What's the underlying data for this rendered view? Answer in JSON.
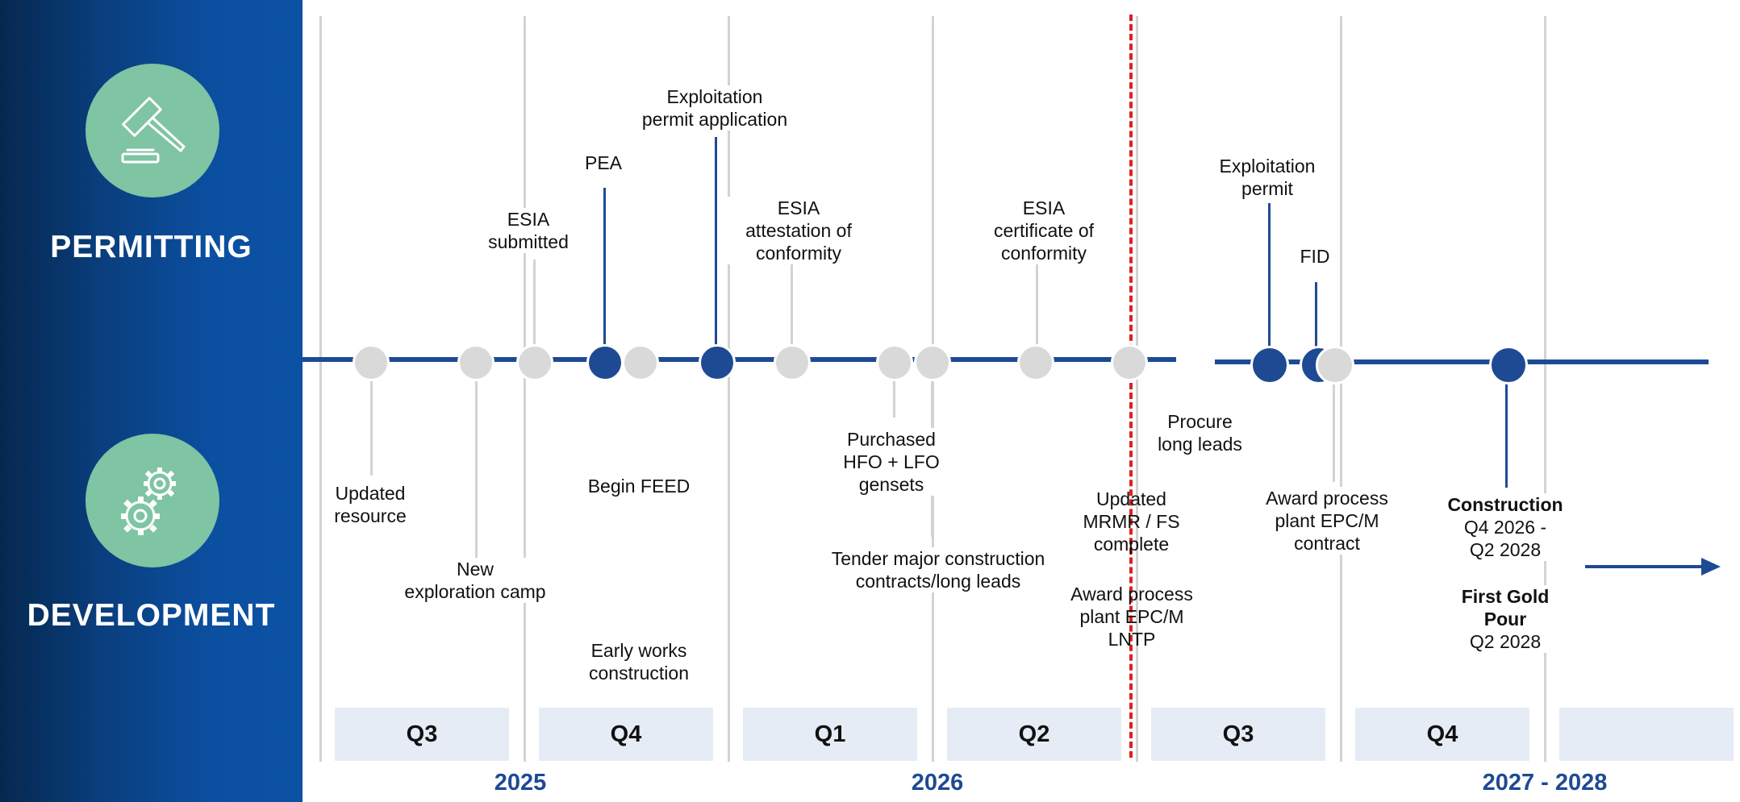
{
  "sidebar": {
    "permitting_label": "PERMITTING",
    "development_label": "DEVELOPMENT"
  },
  "colors": {
    "sidebar_dark": "#05284f",
    "sidebar_blue": "#0c52a4",
    "icon_circle": "#7fc4a3",
    "timeline_blue": "#1e4a94",
    "milestone_grey": "#d9d9d9",
    "today_marker": "#e02020",
    "quarter_box": "#e6ecf5"
  },
  "icons": {
    "permitting": "gavel-icon",
    "development": "gears-icon"
  },
  "permitting_milestones": {
    "esia_submitted": "ESIA\nsubmitted",
    "pea": "PEA",
    "exploitation_permit_application": "Exploitation\npermit application",
    "esia_attestation": "ESIA\nattestation of\nconformity",
    "esia_certificate": "ESIA\ncertificate of\nconformity",
    "exploitation_permit": "Exploitation\npermit",
    "fid": "FID"
  },
  "development_milestones": {
    "updated_resource": "Updated\nresource",
    "new_exploration_camp": "New\nexploration camp",
    "begin_feed": "Begin FEED",
    "early_works": "Early works\nconstruction",
    "purchased_gensets": "Purchased\nHFO + LFO\ngensets",
    "tender_major": "Tender major construction\ncontracts/long leads",
    "updated_mrmr": "Updated\nMRMR / FS\ncomplete",
    "award_lntp": "Award process\nplant EPC/M\nLNTP",
    "procure_long_leads": "Procure\nlong leads",
    "award_contract": "Award process\nplant EPC/M\ncontract",
    "construction_title": "Construction",
    "construction_period": "Q4 2026 -\nQ2 2028",
    "first_gold_title": "First Gold\nPour",
    "first_gold_date": "Q2 2028"
  },
  "quarters": [
    "Q3",
    "Q4",
    "Q1",
    "Q2",
    "Q3",
    "Q4",
    ""
  ],
  "years": {
    "y2025": "2025",
    "y2026": "2026",
    "y2027_2028": "2027 - 2028"
  }
}
